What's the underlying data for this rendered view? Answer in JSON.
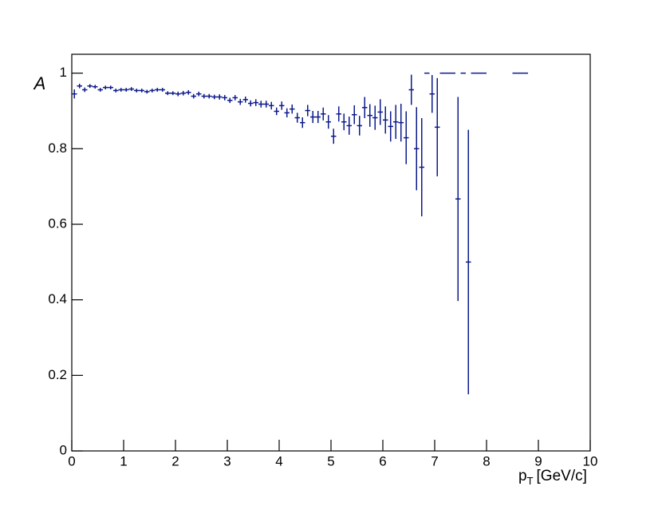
{
  "chart_data": {
    "type": "histogram_errors",
    "y_label": "A",
    "x_label": "p",
    "x_label_sub": "T",
    "x_label_unit": "[GeV/c]",
    "color": "#0c1a8c",
    "bins": [
      0,
      0.1,
      0.2,
      0.3,
      0.4,
      0.5,
      0.6,
      0.7,
      0.8,
      0.9,
      1,
      1.1,
      1.2,
      1.3,
      1.4,
      1.5,
      1.6,
      1.7,
      1.8,
      1.9,
      2,
      2.1,
      2.2,
      2.3,
      2.4,
      2.5,
      2.6,
      2.7,
      2.8,
      2.9,
      3,
      3.1,
      3.2,
      3.3,
      3.4,
      3.5,
      3.6,
      3.7,
      3.8,
      3.9,
      4,
      4.1,
      4.2,
      4.3,
      4.4,
      4.5,
      4.6,
      4.7,
      4.8,
      4.9,
      5,
      5.1,
      5.2,
      5.3,
      5.4,
      5.5,
      5.6,
      5.7,
      5.8,
      5.9,
      6,
      6.1,
      6.2,
      6.3,
      6.4,
      6.5,
      6.6,
      6.7,
      6.8,
      6.9,
      7,
      7.1,
      7.2,
      7.3,
      7.4,
      7.5,
      7.6,
      7.7,
      7.8,
      7.9,
      8,
      8.1,
      8.2,
      8.3,
      8.4,
      8.5,
      8.6,
      8.7,
      8.8
    ],
    "values": [
      0.945,
      0.966,
      0.956,
      0.966,
      0.964,
      0.956,
      0.962,
      0.962,
      0.954,
      0.956,
      0.956,
      0.958,
      0.954,
      0.954,
      0.951,
      0.954,
      0.956,
      0.956,
      0.947,
      0.947,
      0.945,
      0.947,
      0.949,
      0.939,
      0.945,
      0.939,
      0.939,
      0.937,
      0.937,
      0.935,
      0.928,
      0.935,
      0.924,
      0.93,
      0.92,
      0.922,
      0.918,
      0.918,
      0.914,
      0.899,
      0.914,
      0.895,
      0.905,
      0.882,
      0.869,
      0.901,
      0.884,
      0.884,
      0.892,
      0.871,
      0.833,
      0.892,
      0.871,
      0.861,
      0.89,
      0.861,
      0.909,
      0.888,
      0.882,
      0.897,
      0.876,
      0.859,
      0.871,
      0.869,
      0.829,
      0.956,
      0.8,
      0.751,
      1,
      0.945,
      0.857,
      1,
      1,
      1,
      0.667,
      1,
      0.5,
      1,
      1,
      1,
      null,
      null,
      null,
      null,
      null,
      1,
      1,
      1
    ],
    "errors": [
      0.012,
      0.006,
      0.006,
      0.005,
      0.005,
      0.005,
      0.005,
      0.005,
      0.005,
      0.005,
      0.005,
      0.005,
      0.005,
      0.005,
      0.005,
      0.005,
      0.005,
      0.005,
      0.005,
      0.005,
      0.006,
      0.006,
      0.006,
      0.006,
      0.006,
      0.006,
      0.006,
      0.006,
      0.007,
      0.007,
      0.007,
      0.007,
      0.008,
      0.008,
      0.008,
      0.009,
      0.009,
      0.009,
      0.01,
      0.01,
      0.011,
      0.012,
      0.012,
      0.013,
      0.014,
      0.015,
      0.016,
      0.016,
      0.017,
      0.018,
      0.02,
      0.02,
      0.022,
      0.024,
      0.025,
      0.026,
      0.028,
      0.03,
      0.032,
      0.034,
      0.036,
      0.04,
      0.045,
      0.05,
      0.07,
      0.04,
      0.11,
      0.13,
      0,
      0.05,
      0.13,
      0,
      0,
      0,
      0.27,
      0,
      0.35,
      0,
      0,
      0,
      null,
      null,
      null,
      null,
      null,
      0,
      0,
      0
    ],
    "xlim": [
      0,
      10
    ],
    "ylim": [
      0,
      1.05
    ],
    "xticks": [
      0,
      1,
      2,
      3,
      4,
      5,
      6,
      7,
      8,
      9,
      10
    ],
    "yticks": [
      0,
      0.2,
      0.4,
      0.6,
      0.8,
      1
    ]
  }
}
